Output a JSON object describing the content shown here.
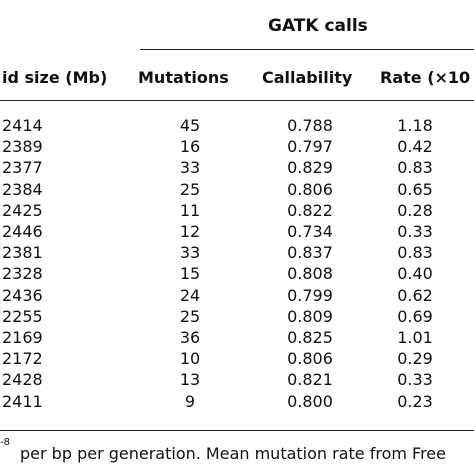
{
  "table": {
    "group_header": "GATK calls",
    "headers": [
      "id size (Mb)",
      "Mutations",
      "Callability",
      "Rate (×10"
    ],
    "rows": [
      [
        "2414",
        "45",
        "0.788",
        "1.18"
      ],
      [
        "2389",
        "16",
        "0.797",
        "0.42"
      ],
      [
        "2377",
        "33",
        "0.829",
        "0.83"
      ],
      [
        "2384",
        "25",
        "0.806",
        "0.65"
      ],
      [
        "2425",
        "11",
        "0.822",
        "0.28"
      ],
      [
        "2446",
        "12",
        "0.734",
        "0.33"
      ],
      [
        "2381",
        "33",
        "0.837",
        "0.83"
      ],
      [
        "2328",
        "15",
        "0.808",
        "0.40"
      ],
      [
        "2436",
        "24",
        "0.799",
        "0.62"
      ],
      [
        "2255",
        "25",
        "0.809",
        "0.69"
      ],
      [
        "2169",
        "36",
        "0.825",
        "1.01"
      ],
      [
        "2172",
        "10",
        "0.806",
        "0.29"
      ],
      [
        "2428",
        "13",
        "0.821",
        "0.33"
      ],
      [
        "2411",
        "9",
        "0.800",
        "0.23"
      ]
    ]
  },
  "footnote": {
    "superscript": "-8",
    "text": "per bp per generation. Mean mutation rate from Free"
  }
}
